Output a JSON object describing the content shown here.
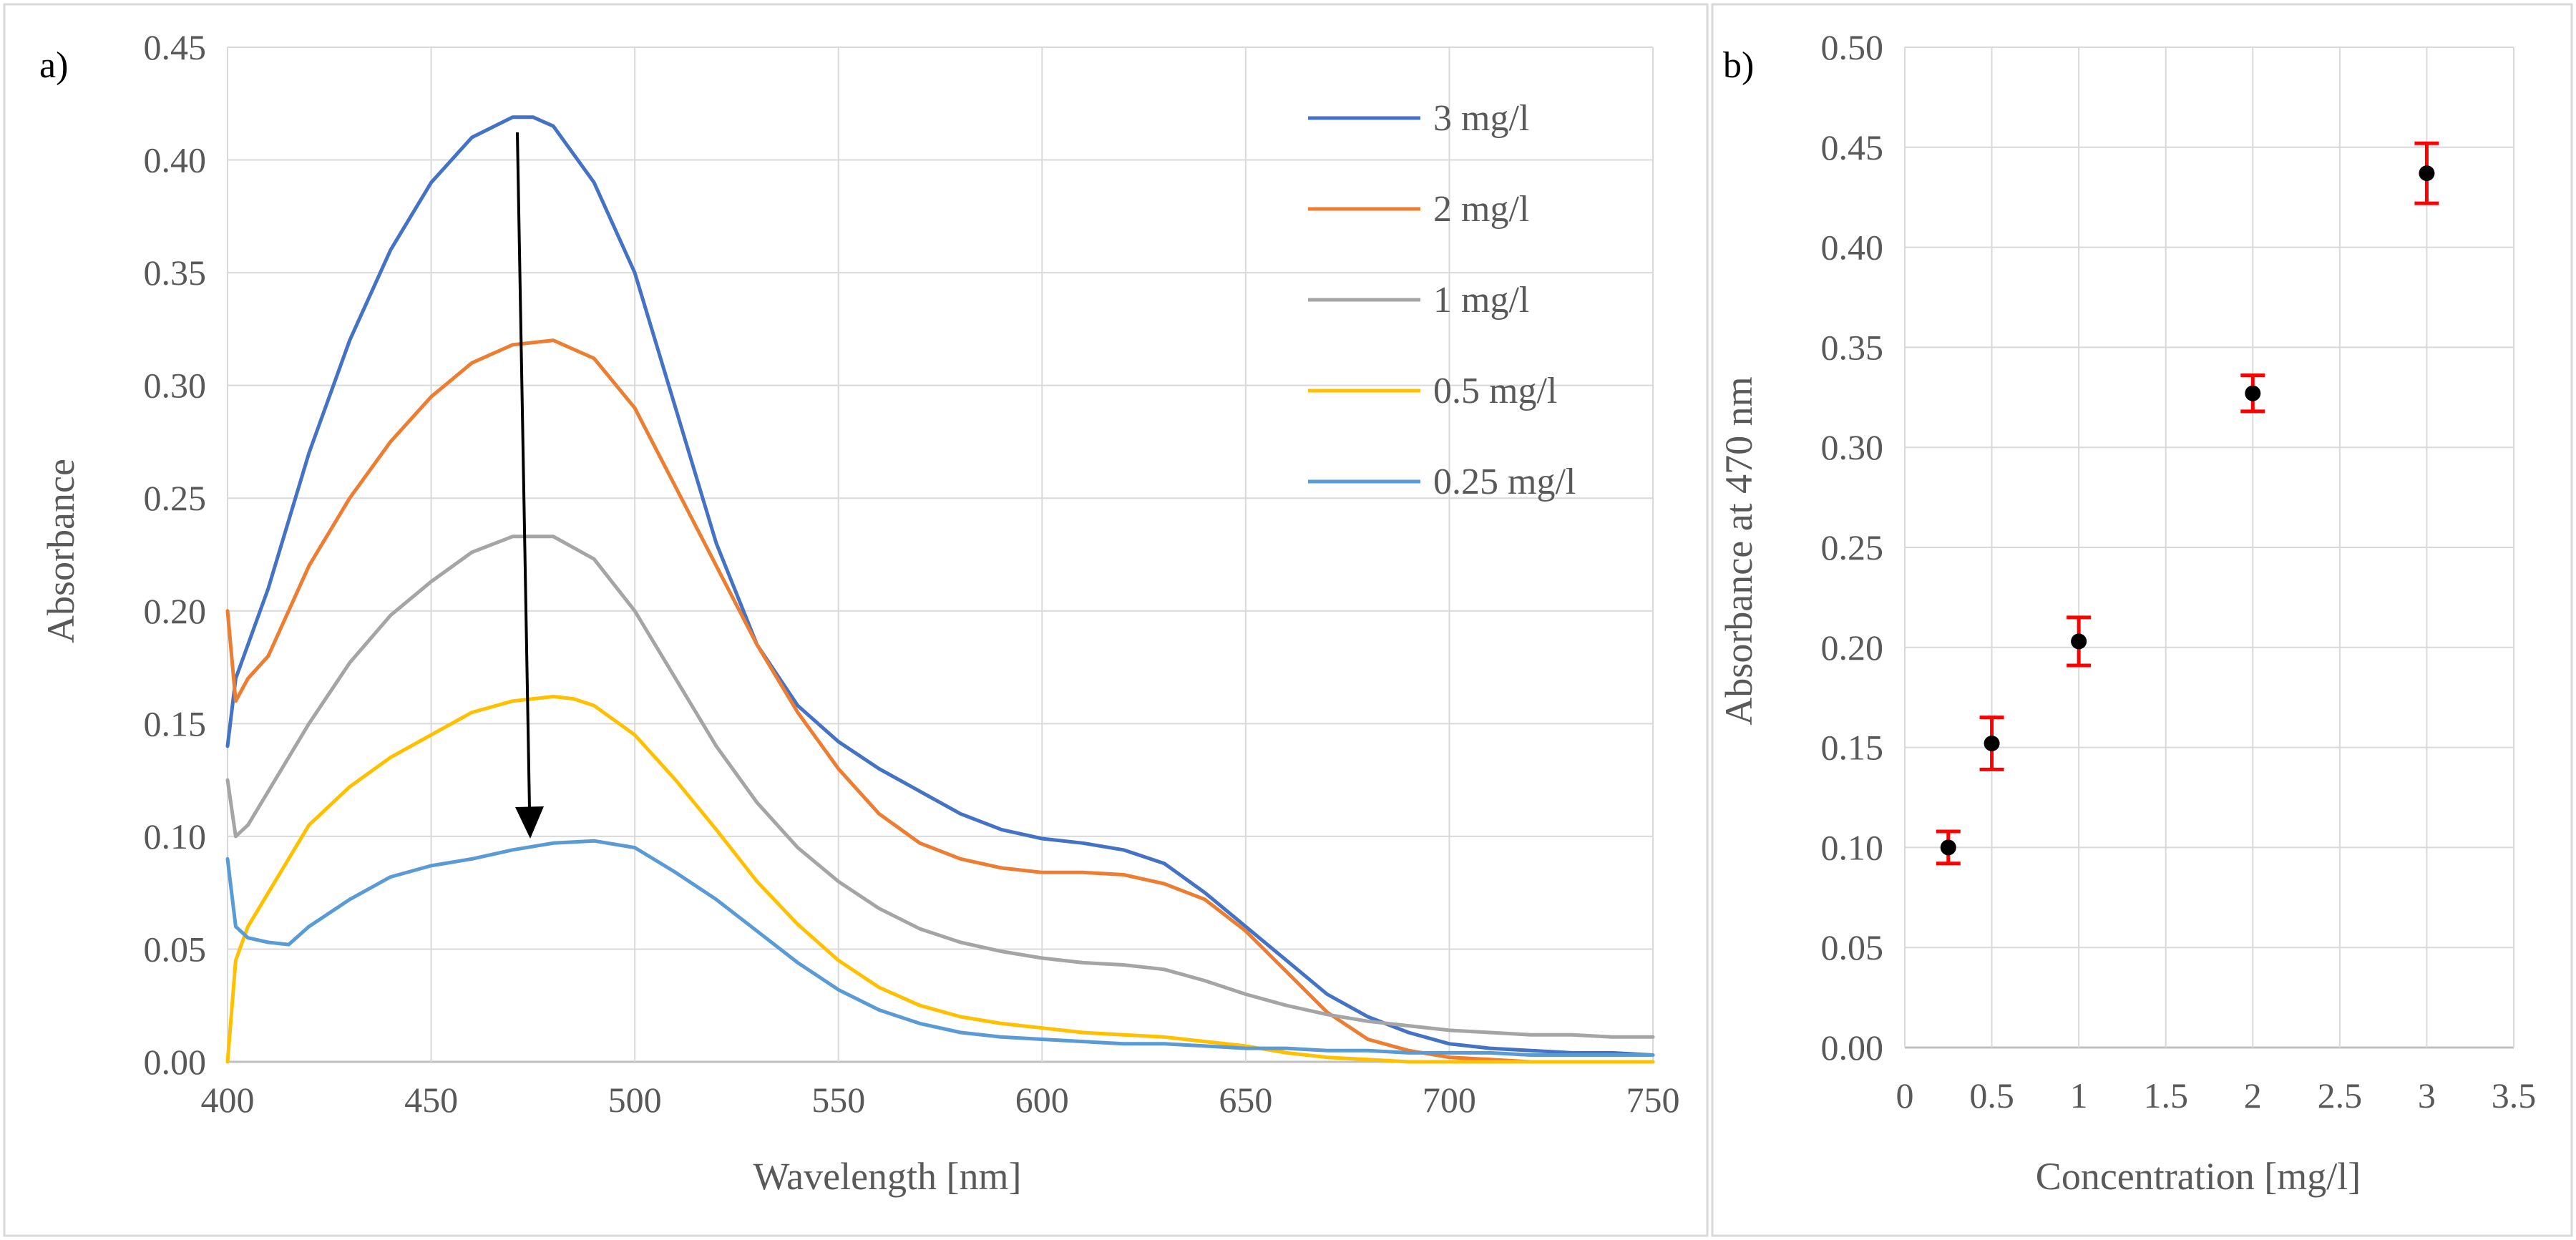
{
  "chart_data": [
    {
      "panel": "a)",
      "type": "line",
      "title": "",
      "xlabel": "Wavelength [nm]",
      "ylabel": "Absorbance",
      "xlim": [
        400,
        750
      ],
      "ylim": [
        0,
        0.45
      ],
      "xticks": [
        "400",
        "450",
        "500",
        "550",
        "600",
        "650",
        "700",
        "750"
      ],
      "yticks": [
        "0.00",
        "0.05",
        "0.10",
        "0.15",
        "0.20",
        "0.25",
        "0.30",
        "0.35",
        "0.40",
        "0.45"
      ],
      "grid": true,
      "legend_position": "top-right",
      "annotation": "arrow pointing down from the 3 mg/l peak to the 0.25 mg/l curve near 470 nm",
      "series": [
        {
          "name": "3 mg/l",
          "color": "#4472C4",
          "x": [
            400,
            402,
            405,
            410,
            420,
            430,
            440,
            450,
            460,
            470,
            475,
            480,
            490,
            500,
            510,
            520,
            530,
            540,
            550,
            560,
            570,
            580,
            590,
            600,
            610,
            620,
            630,
            640,
            650,
            660,
            670,
            680,
            690,
            700,
            710,
            720,
            730,
            740,
            750
          ],
          "y": [
            0.14,
            0.17,
            0.185,
            0.21,
            0.27,
            0.32,
            0.36,
            0.39,
            0.41,
            0.419,
            0.419,
            0.415,
            0.39,
            0.35,
            0.29,
            0.23,
            0.185,
            0.158,
            0.142,
            0.13,
            0.12,
            0.11,
            0.103,
            0.099,
            0.097,
            0.094,
            0.088,
            0.075,
            0.06,
            0.045,
            0.03,
            0.02,
            0.013,
            0.008,
            0.006,
            0.005,
            0.004,
            0.004,
            0.003
          ]
        },
        {
          "name": "2 mg/l",
          "color": "#ED7D31",
          "x": [
            400,
            402,
            405,
            410,
            420,
            430,
            440,
            450,
            460,
            470,
            480,
            490,
            500,
            510,
            520,
            530,
            540,
            550,
            560,
            570,
            580,
            590,
            600,
            610,
            620,
            630,
            640,
            650,
            660,
            670,
            680,
            690,
            700,
            710,
            720,
            730,
            740,
            750
          ],
          "y": [
            0.2,
            0.16,
            0.17,
            0.18,
            0.22,
            0.25,
            0.275,
            0.295,
            0.31,
            0.318,
            0.32,
            0.312,
            0.29,
            0.255,
            0.22,
            0.185,
            0.155,
            0.13,
            0.11,
            0.097,
            0.09,
            0.086,
            0.084,
            0.084,
            0.083,
            0.079,
            0.072,
            0.058,
            0.04,
            0.022,
            0.01,
            0.005,
            0.002,
            0.001,
            0.0,
            0.0,
            0.0,
            0.0
          ]
        },
        {
          "name": "1 mg/l",
          "color": "#A5A5A5",
          "x": [
            400,
            402,
            405,
            410,
            420,
            430,
            440,
            450,
            460,
            470,
            480,
            490,
            500,
            510,
            520,
            530,
            540,
            550,
            560,
            570,
            580,
            590,
            600,
            610,
            620,
            630,
            640,
            650,
            660,
            670,
            680,
            690,
            700,
            710,
            720,
            730,
            740,
            750
          ],
          "y": [
            0.125,
            0.1,
            0.105,
            0.12,
            0.15,
            0.177,
            0.198,
            0.213,
            0.226,
            0.233,
            0.233,
            0.223,
            0.2,
            0.17,
            0.14,
            0.115,
            0.095,
            0.08,
            0.068,
            0.059,
            0.053,
            0.049,
            0.046,
            0.044,
            0.043,
            0.041,
            0.036,
            0.03,
            0.025,
            0.021,
            0.018,
            0.016,
            0.014,
            0.013,
            0.012,
            0.012,
            0.011,
            0.011
          ]
        },
        {
          "name": "0.5 mg/l",
          "color": "#FFC000",
          "x": [
            400,
            402,
            405,
            410,
            420,
            430,
            440,
            450,
            460,
            470,
            480,
            485,
            490,
            500,
            510,
            520,
            530,
            540,
            550,
            560,
            570,
            580,
            590,
            600,
            610,
            620,
            630,
            640,
            650,
            660,
            670,
            680,
            690,
            700,
            710,
            720,
            730,
            740,
            750
          ],
          "y": [
            0.0,
            0.045,
            0.06,
            0.075,
            0.105,
            0.122,
            0.135,
            0.145,
            0.155,
            0.16,
            0.162,
            0.161,
            0.158,
            0.145,
            0.125,
            0.103,
            0.08,
            0.061,
            0.045,
            0.033,
            0.025,
            0.02,
            0.017,
            0.015,
            0.013,
            0.012,
            0.011,
            0.009,
            0.007,
            0.004,
            0.002,
            0.001,
            0.0,
            0.0,
            0.0,
            0.0,
            0.0,
            0.0,
            0.0
          ]
        },
        {
          "name": "0.25 mg/l",
          "color": "#5B9BD5",
          "x": [
            400,
            402,
            405,
            410,
            415,
            420,
            430,
            440,
            450,
            460,
            470,
            480,
            490,
            500,
            510,
            520,
            530,
            540,
            550,
            560,
            570,
            580,
            590,
            600,
            610,
            620,
            630,
            640,
            650,
            660,
            670,
            680,
            690,
            700,
            710,
            720,
            730,
            740,
            750
          ],
          "y": [
            0.09,
            0.06,
            0.055,
            0.053,
            0.052,
            0.06,
            0.072,
            0.082,
            0.087,
            0.09,
            0.094,
            0.097,
            0.098,
            0.095,
            0.084,
            0.072,
            0.058,
            0.044,
            0.032,
            0.023,
            0.017,
            0.013,
            0.011,
            0.01,
            0.009,
            0.008,
            0.008,
            0.007,
            0.006,
            0.006,
            0.005,
            0.005,
            0.004,
            0.004,
            0.004,
            0.003,
            0.003,
            0.003,
            0.003
          ]
        }
      ]
    },
    {
      "panel": "b)",
      "type": "scatter",
      "title": "",
      "xlabel": "Concentration [mg/l]",
      "ylabel": "Absorbance at 470 nm",
      "xlim": [
        0,
        3.5
      ],
      "ylim": [
        0,
        0.5
      ],
      "xticks": [
        "0",
        "0.5",
        "1",
        "1.5",
        "2",
        "2.5",
        "3",
        "3.5"
      ],
      "yticks": [
        "0.00",
        "0.05",
        "0.10",
        "0.15",
        "0.20",
        "0.25",
        "0.30",
        "0.35",
        "0.40",
        "0.45",
        "0.50"
      ],
      "grid": true,
      "point_color": "#000000",
      "error_bar_color": "#FF0000",
      "series": [
        {
          "name": "Absorbance at 470 nm",
          "x": [
            0.25,
            0.5,
            1,
            2,
            3
          ],
          "y": [
            0.1,
            0.152,
            0.203,
            0.327,
            0.437
          ],
          "error": [
            0.008,
            0.013,
            0.012,
            0.009,
            0.015
          ]
        }
      ]
    }
  ]
}
